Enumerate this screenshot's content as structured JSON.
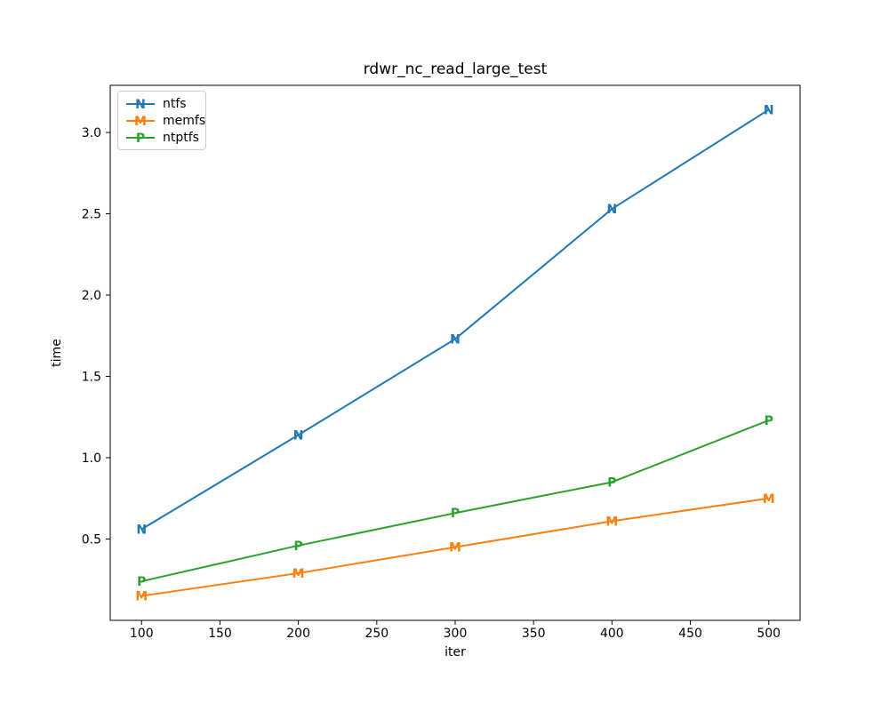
{
  "chart_data": {
    "type": "line",
    "title": "rdwr_nc_read_large_test",
    "xlabel": "iter",
    "ylabel": "time",
    "x": [
      100,
      200,
      300,
      400,
      500
    ],
    "series": [
      {
        "name": "ntfs",
        "marker": "N",
        "color": "#1f77b4",
        "values": [
          0.56,
          1.14,
          1.73,
          2.53,
          3.14
        ]
      },
      {
        "name": "memfs",
        "marker": "M",
        "color": "#ff7f0e",
        "values": [
          0.15,
          0.29,
          0.45,
          0.61,
          0.75
        ]
      },
      {
        "name": "ntptfs",
        "marker": "P",
        "color": "#2ca02c",
        "values": [
          0.24,
          0.46,
          0.66,
          0.85,
          1.23
        ]
      }
    ],
    "xticks": [
      100,
      150,
      200,
      250,
      300,
      350,
      400,
      450,
      500
    ],
    "yticks": [
      0.5,
      1.0,
      1.5,
      2.0,
      2.5,
      3.0
    ],
    "xlim": [
      80,
      520
    ],
    "ylim": [
      0.0,
      3.29
    ],
    "grid": false,
    "legend_position": "upper left",
    "axis_color": "#000000",
    "background_color": "#ffffff"
  }
}
